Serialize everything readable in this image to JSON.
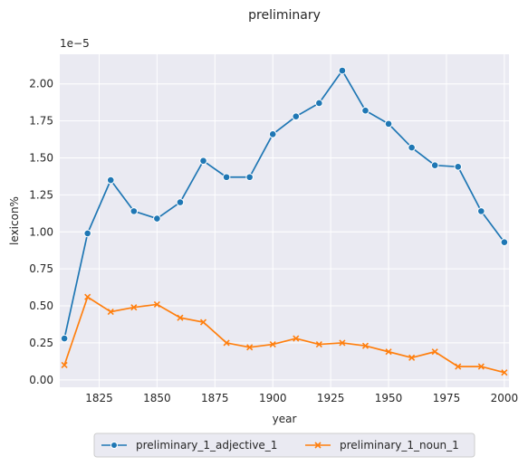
{
  "chart_data": {
    "type": "line",
    "title": "preliminary",
    "xlabel": "year",
    "ylabel": "lexicon%",
    "y_multiplier_label": "1e−5",
    "x": [
      1810,
      1820,
      1830,
      1840,
      1850,
      1860,
      1870,
      1880,
      1890,
      1900,
      1910,
      1920,
      1930,
      1940,
      1950,
      1960,
      1970,
      1980,
      1990,
      2000
    ],
    "xlim": [
      1808,
      2002
    ],
    "ylim": [
      -0.05,
      2.2
    ],
    "x_ticks": [
      1825,
      1850,
      1875,
      1900,
      1925,
      1950,
      1975,
      2000
    ],
    "x_tick_labels": [
      "1825",
      "1850",
      "1875",
      "1900",
      "1925",
      "1950",
      "1975",
      "2000"
    ],
    "y_ticks": [
      0,
      0.25,
      0.5,
      0.75,
      1.0,
      1.25,
      1.5,
      1.75,
      2.0
    ],
    "y_tick_labels": [
      "0.00",
      "0.25",
      "0.50",
      "0.75",
      "1.00",
      "1.25",
      "1.50",
      "1.75",
      "2.00"
    ],
    "grid": true,
    "legend_placement": "bottom-center",
    "series": [
      {
        "name": "preliminary_1_adjective_1",
        "color": "#1f77b4",
        "marker": "circle",
        "values": [
          0.28,
          0.99,
          1.35,
          1.14,
          1.09,
          1.2,
          1.48,
          1.37,
          1.37,
          1.66,
          1.78,
          1.87,
          2.09,
          1.82,
          1.73,
          1.57,
          1.45,
          1.44,
          1.14,
          0.93
        ]
      },
      {
        "name": "preliminary_1_noun_1",
        "color": "#ff7f0e",
        "marker": "x",
        "values": [
          0.1,
          0.56,
          0.46,
          0.49,
          0.51,
          0.42,
          0.39,
          0.25,
          0.22,
          0.24,
          0.28,
          0.24,
          0.25,
          0.23,
          0.19,
          0.15,
          0.19,
          0.09,
          0.09,
          0.05
        ]
      }
    ]
  }
}
